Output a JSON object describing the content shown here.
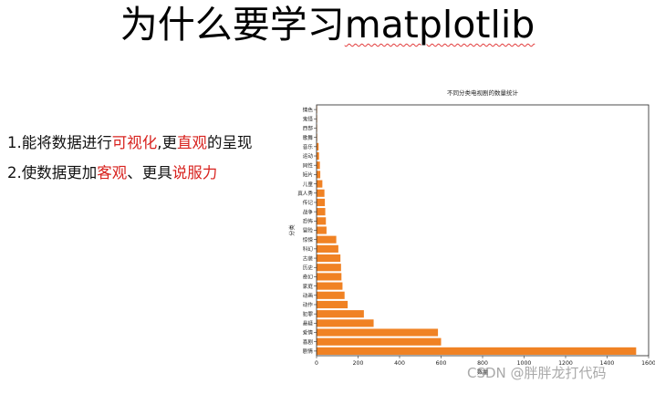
{
  "slide": {
    "title_cn": "为什么要学习",
    "title_en": "matplotlib",
    "bullets": [
      {
        "p1": "1.能将数据进行",
        "h1": "可视化",
        "p2": ",更",
        "h2": "直观",
        "p3": "的呈现"
      },
      {
        "p1": "2.使数据更加",
        "h1": "客观",
        "p2": "、更具",
        "h2": "说服力",
        "p3": ""
      }
    ],
    "colors": {
      "highlight": "#d8231f",
      "text": "#111111",
      "bar": "#f08224"
    }
  },
  "watermark": "CSDN @胖胖龙打代码",
  "chart_data": {
    "type": "bar",
    "orientation": "horizontal",
    "title": "不同分类电视剧的数量统计",
    "xlabel": "数量",
    "ylabel": "分类",
    "categories": [
      "剧情",
      "喜剧",
      "爱情",
      "悬疑",
      "犯罪",
      "动作",
      "动画",
      "家庭",
      "奇幻",
      "历史",
      "古装",
      "科幻",
      "惊悚",
      "冒险",
      "恐怖",
      "战争",
      "传记",
      "真人秀",
      "儿童",
      "短片",
      "同性",
      "运动",
      "音乐",
      "歌舞",
      "西部",
      "鬼怪",
      "情色"
    ],
    "values": [
      1540,
      600,
      585,
      275,
      228,
      150,
      135,
      125,
      120,
      118,
      115,
      105,
      95,
      48,
      45,
      42,
      40,
      38,
      28,
      18,
      16,
      12,
      10,
      3,
      2,
      1,
      1
    ],
    "xlim": [
      0,
      1600
    ],
    "xticks": [
      0,
      200,
      400,
      600,
      800,
      1000,
      1200,
      1400,
      1600
    ],
    "grid": false,
    "legend": "none"
  }
}
